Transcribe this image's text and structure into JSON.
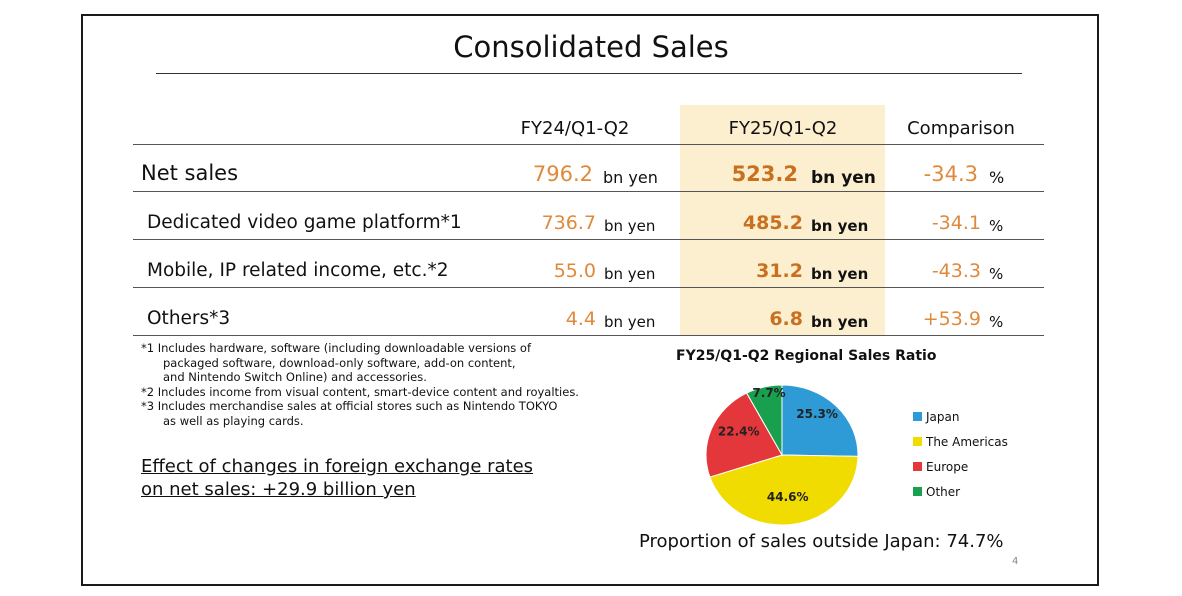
{
  "slide": {
    "title": "Consolidated Sales",
    "page_number": "4"
  },
  "table": {
    "columns": [
      "FY24/Q1-Q2",
      "FY25/Q1-Q2",
      "Comparison"
    ],
    "rows": [
      {
        "label": "Net sales",
        "fy24": "796.2",
        "fy24_unit": "bn yen",
        "fy25": "523.2",
        "fy25_unit": "bn yen",
        "comparison": "-34.3",
        "comparison_unit": "%"
      },
      {
        "label": "Dedicated video game platform*1",
        "fy24": "736.7",
        "fy24_unit": "bn yen",
        "fy25": "485.2",
        "fy25_unit": "bn yen",
        "comparison": "-34.1",
        "comparison_unit": "%"
      },
      {
        "label": "Mobile, IP related income, etc.*2",
        "fy24": "55.0",
        "fy24_unit": "bn yen",
        "fy25": "31.2",
        "fy25_unit": "bn yen",
        "comparison": "-43.3",
        "comparison_unit": "%"
      },
      {
        "label": "Others*3",
        "fy24": "4.4",
        "fy24_unit": "bn yen",
        "fy25": "6.8",
        "fy25_unit": "bn yen",
        "comparison": "+53.9",
        "comparison_unit": "%"
      }
    ]
  },
  "footnotes": [
    [
      "*1 Includes hardware, software (including downloadable versions of",
      "packaged software, download-only software, add-on content,",
      "and Nintendo Switch Online) and accessories."
    ],
    [
      "*2 Includes income from visual content, smart-device content and royalties."
    ],
    [
      "*3 Includes merchandise sales at official stores such as Nintendo TOKYO",
      "as well as playing cards."
    ]
  ],
  "fx_note": {
    "line1": "Effect of changes in foreign exchange rates",
    "line2": "on net sales: +29.9 billion yen"
  },
  "chart_data": {
    "type": "pie",
    "title": "FY25/Q1-Q2 Regional Sales Ratio",
    "slices": [
      {
        "name": "Japan",
        "value": 25.3,
        "label": "25.3%",
        "color": "#2e9bd6"
      },
      {
        "name": "The Americas",
        "value": 44.6,
        "label": "44.6%",
        "color": "#f0dc00"
      },
      {
        "name": "Europe",
        "value": 22.4,
        "label": "22.4%",
        "color": "#e3373c"
      },
      {
        "name": "Other",
        "value": 7.7,
        "label": "7.7%",
        "color": "#19a04f"
      }
    ],
    "legend_position": "right"
  },
  "proportion_note": "Proportion of sales outside Japan: 74.7%",
  "colors": {
    "highlight": "#fcefcf",
    "orange": "#e0893a",
    "orange_bold": "#c8701e"
  }
}
